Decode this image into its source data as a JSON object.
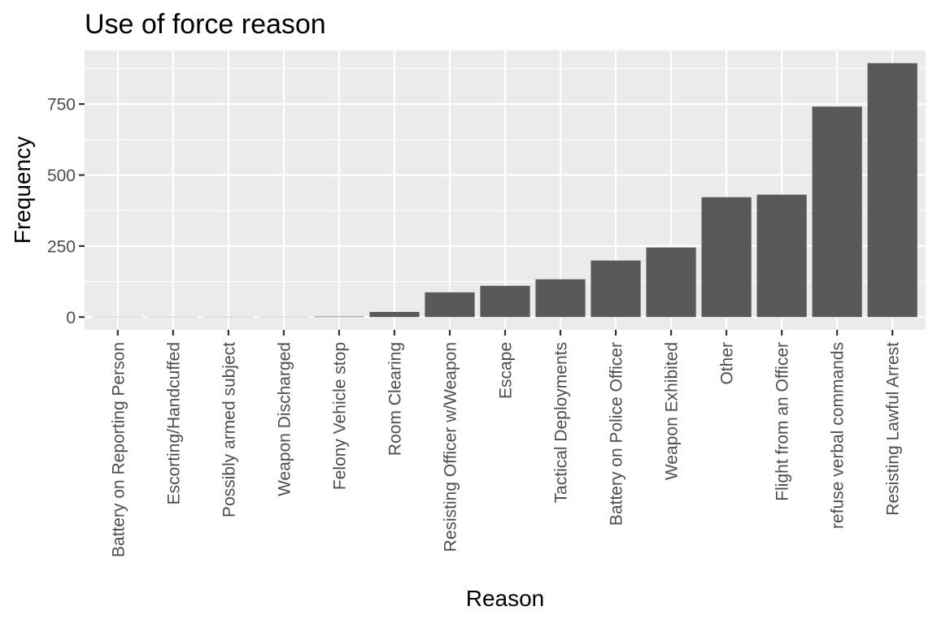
{
  "colors": {
    "panel_background": "#ebebeb",
    "grid_major": "#ffffff",
    "grid_minor": "#f5f5f5",
    "bar_fill": "#595959",
    "tick_color": "#333333",
    "tick_label_color": "#4d4d4d",
    "text_color": "#000000"
  },
  "chart_data": {
    "type": "bar",
    "title": "Use of force reason",
    "xlabel": "Reason",
    "ylabel": "Frequency",
    "categories": [
      "Battery on Reporting Person",
      "Escorting/Handcuffed",
      "Possibly armed subject",
      "Weapon Discharged",
      "Felony Vehicle stop",
      "Room Clearing",
      "Resisting Officer w/Weapon",
      "Escape",
      "Tactical Deployments",
      "Battery on Police Officer",
      "Weapon Exhibited",
      "Other",
      "Flight from an Officer",
      "refuse verbal commands",
      "Resisting Lawful Arrest"
    ],
    "values": [
      1,
      1,
      1,
      1,
      2,
      18,
      87,
      110,
      133,
      199,
      245,
      422,
      431,
      741,
      894
    ],
    "ylim": [
      -45,
      939
    ],
    "y_ticks": [
      0,
      250,
      500,
      750
    ],
    "y_tick_labels": [
      "0",
      "250",
      "500",
      "750"
    ],
    "grid": true,
    "legend": "none"
  }
}
